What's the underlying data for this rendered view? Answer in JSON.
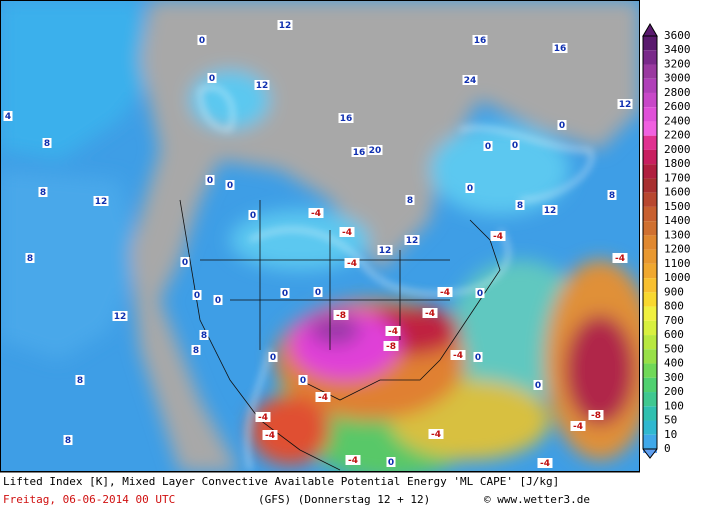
{
  "colorbar": {
    "labels": [
      3600,
      3400,
      3200,
      3000,
      2800,
      2600,
      2400,
      2200,
      2000,
      1800,
      1700,
      1600,
      1500,
      1400,
      1300,
      1200,
      1100,
      1000,
      900,
      800,
      700,
      600,
      500,
      400,
      300,
      200,
      100,
      50,
      10,
      0
    ],
    "colors": [
      "#5a1a6e",
      "#7a2a8a",
      "#9a3aa0",
      "#b040b8",
      "#c848c8",
      "#e050d8",
      "#f060e0",
      "#e03090",
      "#c82060",
      "#b02040",
      "#a83030",
      "#b84830",
      "#c86030",
      "#d07030",
      "#e08830",
      "#e89830",
      "#f0a830",
      "#f8c030",
      "#f8d830",
      "#f0f040",
      "#d8f040",
      "#b8e840",
      "#98e048",
      "#70d858",
      "#50d070",
      "#40c890",
      "#30c0b0",
      "#30b8d0",
      "#40a8e8",
      "#60a0f0"
    ]
  },
  "contour_labels": [
    4,
    8,
    8,
    12,
    8,
    12,
    0,
    0,
    12,
    12,
    16,
    20,
    16,
    8,
    24,
    16,
    16,
    12,
    0,
    0,
    0,
    0,
    8,
    12,
    8,
    12,
    12,
    0,
    0,
    0,
    0,
    0,
    0,
    0,
    0,
    0,
    8,
    8,
    8,
    8,
    0,
    0,
    0,
    -4,
    -4,
    -4,
    -4,
    -4,
    -8,
    -4,
    -8,
    -4,
    -4,
    -4,
    -4,
    -4,
    -4,
    -4,
    -4,
    -8,
    -4,
    0,
    0,
    -4
  ],
  "footer": {
    "title": "Lifted Index [K], Mixed Layer Convective Available Potential Energy 'ML CAPE' [J/kg]",
    "date": "Freitag, 06-06-2014  00 UTC",
    "model": "(GFS)  (Donnerstag 12 + 12)",
    "credit": "© www.wetter3.de"
  }
}
